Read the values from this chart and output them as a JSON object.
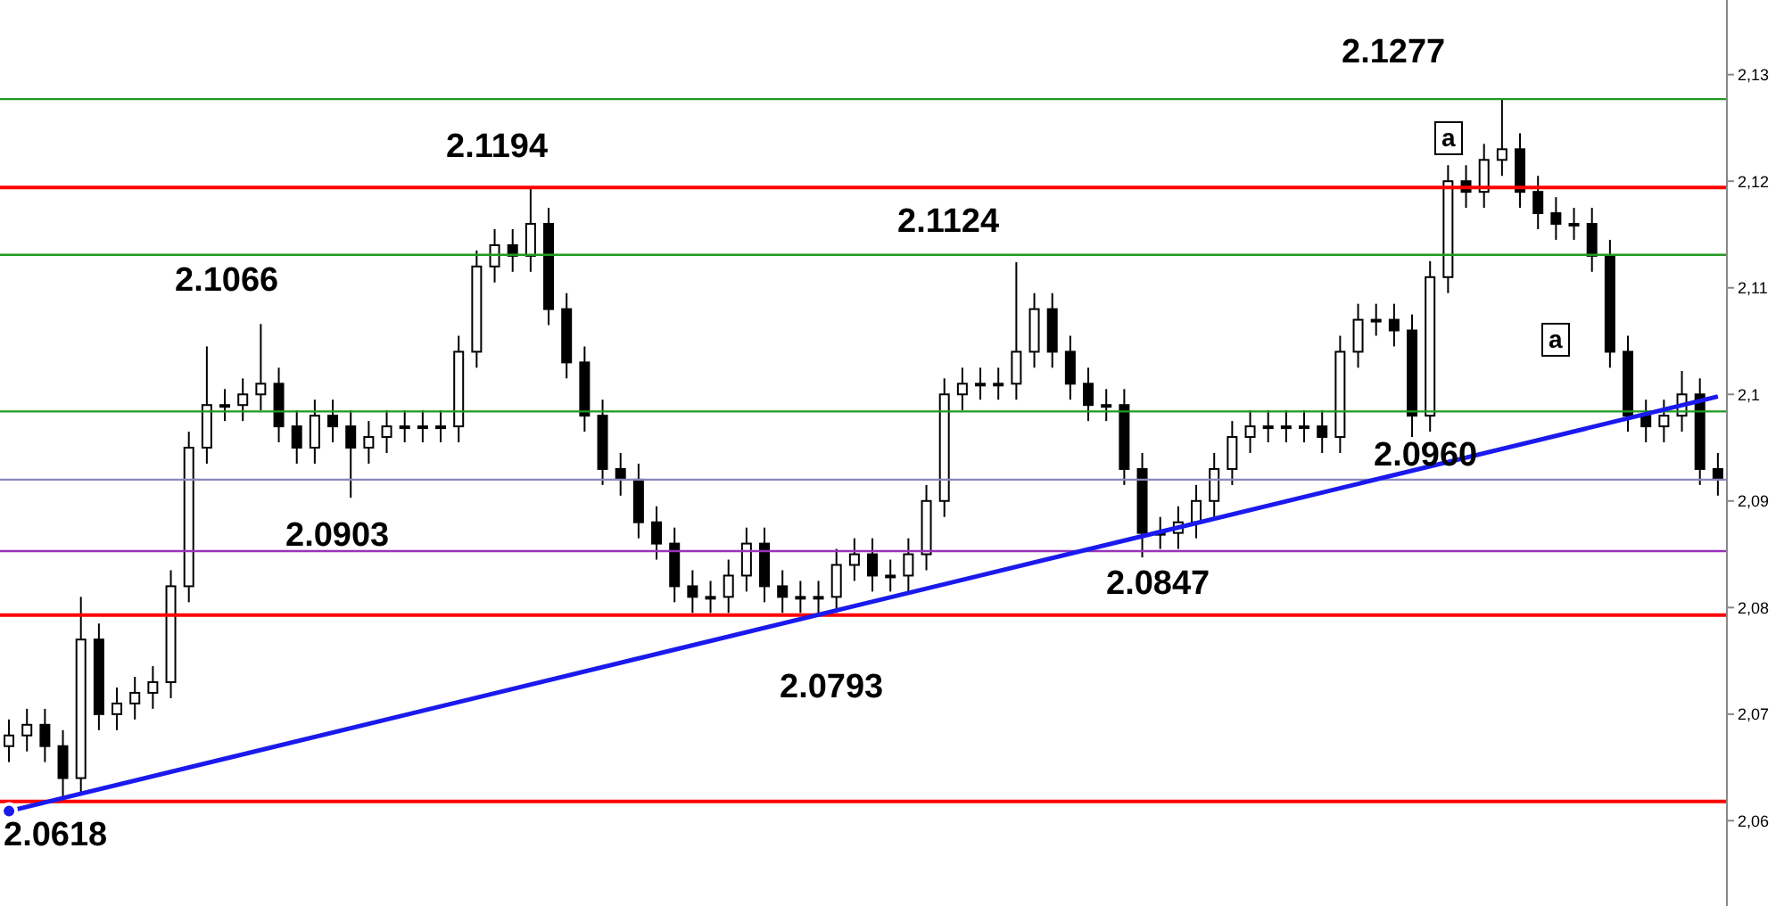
{
  "chart_data": {
    "type": "candlestick",
    "categories": [
      null,
      null,
      null,
      null,
      null,
      null,
      null,
      null,
      null,
      null,
      null,
      null,
      null,
      null,
      null,
      null,
      null,
      null,
      null,
      null,
      null,
      null,
      null,
      null,
      null,
      null,
      null,
      null,
      null,
      null,
      null,
      null,
      null,
      null,
      null,
      null,
      null,
      null,
      null,
      null,
      null,
      null,
      null,
      null,
      null,
      null,
      null,
      null,
      null,
      null,
      null,
      null,
      null,
      null,
      null,
      null,
      null,
      null,
      null,
      null,
      null,
      null,
      null,
      null,
      null,
      null,
      null,
      null,
      null,
      null,
      null,
      null,
      null,
      null,
      null,
      null,
      null,
      null,
      null,
      null,
      null,
      null,
      null,
      null,
      null,
      null,
      null,
      null,
      null,
      null,
      null,
      null,
      null,
      null,
      null,
      null
    ],
    "ohlc": [
      [
        2.067,
        2.0695,
        2.0655,
        2.068
      ],
      [
        2.068,
        2.0705,
        2.0665,
        2.069
      ],
      [
        2.069,
        2.0705,
        2.0655,
        2.067
      ],
      [
        2.067,
        2.0685,
        2.0618,
        2.064
      ],
      [
        2.064,
        2.081,
        2.0625,
        2.077
      ],
      [
        2.077,
        2.0785,
        2.0685,
        2.07
      ],
      [
        2.07,
        2.0725,
        2.0685,
        2.071
      ],
      [
        2.071,
        2.0735,
        2.0695,
        2.072
      ],
      [
        2.072,
        2.0745,
        2.0705,
        2.073
      ],
      [
        2.073,
        2.0835,
        2.0715,
        2.082
      ],
      [
        2.082,
        2.0965,
        2.0805,
        2.095
      ],
      [
        2.095,
        2.1045,
        2.0935,
        2.099
      ],
      [
        2.099,
        2.1005,
        2.0975,
        2.099
      ],
      [
        2.099,
        2.1015,
        2.0975,
        2.1
      ],
      [
        2.1,
        2.1066,
        2.0985,
        2.101
      ],
      [
        2.101,
        2.1025,
        2.0955,
        2.097
      ],
      [
        2.097,
        2.0985,
        2.0935,
        2.095
      ],
      [
        2.095,
        2.0995,
        2.0935,
        2.098
      ],
      [
        2.098,
        2.0995,
        2.0955,
        2.097
      ],
      [
        2.097,
        2.0985,
        2.0903,
        2.095
      ],
      [
        2.095,
        2.0975,
        2.0935,
        2.096
      ],
      [
        2.096,
        2.0985,
        2.0945,
        2.097
      ],
      [
        2.097,
        2.0985,
        2.0955,
        2.097
      ],
      [
        2.097,
        2.0985,
        2.0955,
        2.097
      ],
      [
        2.097,
        2.0985,
        2.0955,
        2.097
      ],
      [
        2.097,
        2.1055,
        2.0955,
        2.104
      ],
      [
        2.104,
        2.1135,
        2.1025,
        2.112
      ],
      [
        2.112,
        2.1155,
        2.1105,
        2.114
      ],
      [
        2.114,
        2.1155,
        2.1115,
        2.113
      ],
      [
        2.113,
        2.1194,
        2.1115,
        2.116
      ],
      [
        2.116,
        2.1175,
        2.1065,
        2.108
      ],
      [
        2.108,
        2.1095,
        2.1015,
        2.103
      ],
      [
        2.103,
        2.1045,
        2.0965,
        2.098
      ],
      [
        2.098,
        2.0995,
        2.0915,
        2.093
      ],
      [
        2.093,
        2.0945,
        2.0905,
        2.092
      ],
      [
        2.092,
        2.0935,
        2.0865,
        2.088
      ],
      [
        2.088,
        2.0895,
        2.0845,
        2.086
      ],
      [
        2.086,
        2.0875,
        2.0805,
        2.082
      ],
      [
        2.082,
        2.0835,
        2.0795,
        2.081
      ],
      [
        2.081,
        2.0825,
        2.0795,
        2.081
      ],
      [
        2.081,
        2.0845,
        2.0795,
        2.083
      ],
      [
        2.083,
        2.0875,
        2.0815,
        2.086
      ],
      [
        2.086,
        2.0875,
        2.0805,
        2.082
      ],
      [
        2.082,
        2.0835,
        2.0795,
        2.081
      ],
      [
        2.081,
        2.0825,
        2.0795,
        2.081
      ],
      [
        2.081,
        2.0825,
        2.0793,
        2.081
      ],
      [
        2.081,
        2.0855,
        2.0795,
        2.084
      ],
      [
        2.084,
        2.0865,
        2.0825,
        2.085
      ],
      [
        2.085,
        2.0865,
        2.0815,
        2.083
      ],
      [
        2.083,
        2.0845,
        2.0815,
        2.083
      ],
      [
        2.083,
        2.0865,
        2.0815,
        2.085
      ],
      [
        2.085,
        2.0915,
        2.0835,
        2.09
      ],
      [
        2.09,
        2.1015,
        2.0885,
        2.1
      ],
      [
        2.1,
        2.1025,
        2.0985,
        2.101
      ],
      [
        2.101,
        2.1025,
        2.0995,
        2.101
      ],
      [
        2.101,
        2.1025,
        2.0995,
        2.101
      ],
      [
        2.101,
        2.1124,
        2.0995,
        2.104
      ],
      [
        2.104,
        2.1095,
        2.1025,
        2.108
      ],
      [
        2.108,
        2.1095,
        2.1025,
        2.104
      ],
      [
        2.104,
        2.1055,
        2.0995,
        2.101
      ],
      [
        2.101,
        2.1025,
        2.0975,
        2.099
      ],
      [
        2.099,
        2.1005,
        2.0975,
        2.099
      ],
      [
        2.099,
        2.1005,
        2.0915,
        2.093
      ],
      [
        2.093,
        2.0945,
        2.0847,
        2.087
      ],
      [
        2.087,
        2.0885,
        2.0855,
        2.087
      ],
      [
        2.087,
        2.0895,
        2.0855,
        2.088
      ],
      [
        2.088,
        2.0915,
        2.0865,
        2.09
      ],
      [
        2.09,
        2.0945,
        2.0885,
        2.093
      ],
      [
        2.093,
        2.0975,
        2.0915,
        2.096
      ],
      [
        2.096,
        2.0985,
        2.0945,
        2.097
      ],
      [
        2.097,
        2.0985,
        2.0955,
        2.097
      ],
      [
        2.097,
        2.0985,
        2.0955,
        2.097
      ],
      [
        2.097,
        2.0985,
        2.0955,
        2.097
      ],
      [
        2.097,
        2.0985,
        2.0945,
        2.096
      ],
      [
        2.096,
        2.1055,
        2.0945,
        2.104
      ],
      [
        2.104,
        2.1085,
        2.1025,
        2.107
      ],
      [
        2.107,
        2.1085,
        2.1055,
        2.107
      ],
      [
        2.107,
        2.1085,
        2.1045,
        2.106
      ],
      [
        2.106,
        2.1075,
        2.096,
        2.098
      ],
      [
        2.098,
        2.1125,
        2.0965,
        2.111
      ],
      [
        2.111,
        2.1215,
        2.1095,
        2.12
      ],
      [
        2.12,
        2.1215,
        2.1175,
        2.119
      ],
      [
        2.119,
        2.1235,
        2.1175,
        2.122
      ],
      [
        2.122,
        2.1277,
        2.1205,
        2.123
      ],
      [
        2.123,
        2.1245,
        2.1175,
        2.119
      ],
      [
        2.119,
        2.1205,
        2.1155,
        2.117
      ],
      [
        2.117,
        2.1185,
        2.1145,
        2.116
      ],
      [
        2.116,
        2.1175,
        2.1145,
        2.116
      ],
      [
        2.116,
        2.1175,
        2.1115,
        2.113
      ],
      [
        2.113,
        2.1145,
        2.1025,
        2.104
      ],
      [
        2.104,
        2.1055,
        2.0965,
        2.098
      ],
      [
        2.098,
        2.0995,
        2.0955,
        2.097
      ],
      [
        2.097,
        2.0995,
        2.0955,
        2.098
      ],
      [
        2.098,
        2.1022,
        2.0965,
        2.1
      ],
      [
        2.1,
        2.1015,
        2.0915,
        2.093
      ],
      [
        2.093,
        2.0945,
        2.0905,
        2.092
      ]
    ],
    "series": [
      {
        "type": "line",
        "color": "#1a1aee",
        "values": [
          2.0609,
          null,
          null,
          null,
          null,
          null,
          null,
          null,
          null,
          null,
          null,
          null,
          null,
          null,
          null,
          null,
          null,
          null,
          null,
          null,
          null,
          null,
          null,
          null,
          null,
          null,
          null,
          null,
          null,
          null,
          null,
          null,
          null,
          null,
          null,
          null,
          null,
          null,
          null,
          null,
          null,
          null,
          null,
          null,
          null,
          null,
          null,
          null,
          null,
          null,
          null,
          null,
          null,
          null,
          null,
          null,
          null,
          null,
          null,
          null,
          null,
          null,
          null,
          null,
          null,
          null,
          null,
          null,
          null,
          null,
          null,
          null,
          null,
          null,
          null,
          null,
          null,
          null,
          null,
          null,
          null,
          null,
          null,
          null,
          null,
          null,
          null,
          null,
          null,
          null,
          null,
          null,
          null,
          null,
          null,
          2.0998
        ]
      }
    ],
    "ylim": [
      2.052,
      2.137
    ],
    "yticks": [
      {
        "value": 2.06,
        "label": "2,06"
      },
      {
        "value": 2.07,
        "label": "2,07"
      },
      {
        "value": 2.08,
        "label": "2,08"
      },
      {
        "value": 2.09,
        "label": "2,09"
      },
      {
        "value": 2.1,
        "label": "2,1"
      },
      {
        "value": 2.11,
        "label": "2,11"
      },
      {
        "value": 2.12,
        "label": "2,12"
      },
      {
        "value": 2.13,
        "label": "2,13"
      }
    ],
    "tick_labels": "y",
    "ref_lines": [
      {
        "axis": "y",
        "value": 2.1194,
        "color": "#ff0000"
      },
      {
        "axis": "y",
        "value": 2.0793,
        "color": "#ff0000"
      },
      {
        "axis": "y",
        "value": 2.0618,
        "color": "#ff0000"
      },
      {
        "axis": "y",
        "value": 2.0853,
        "color": "#9933bb"
      },
      {
        "axis": "y",
        "value": 2.1277,
        "color": "#229922"
      },
      {
        "axis": "y",
        "value": 2.1131,
        "color": "#229922"
      },
      {
        "axis": "y",
        "value": 2.0984,
        "color": "#229922"
      },
      {
        "axis": "y",
        "value": 2.092,
        "color": "#8888bb"
      }
    ],
    "annotations": [
      "2.0618",
      "2.1066",
      "2.0903",
      "2.1194",
      "2.0793",
      "2.1124",
      "2.0847",
      "2.0960",
      "2.1277",
      "a",
      "a"
    ]
  }
}
